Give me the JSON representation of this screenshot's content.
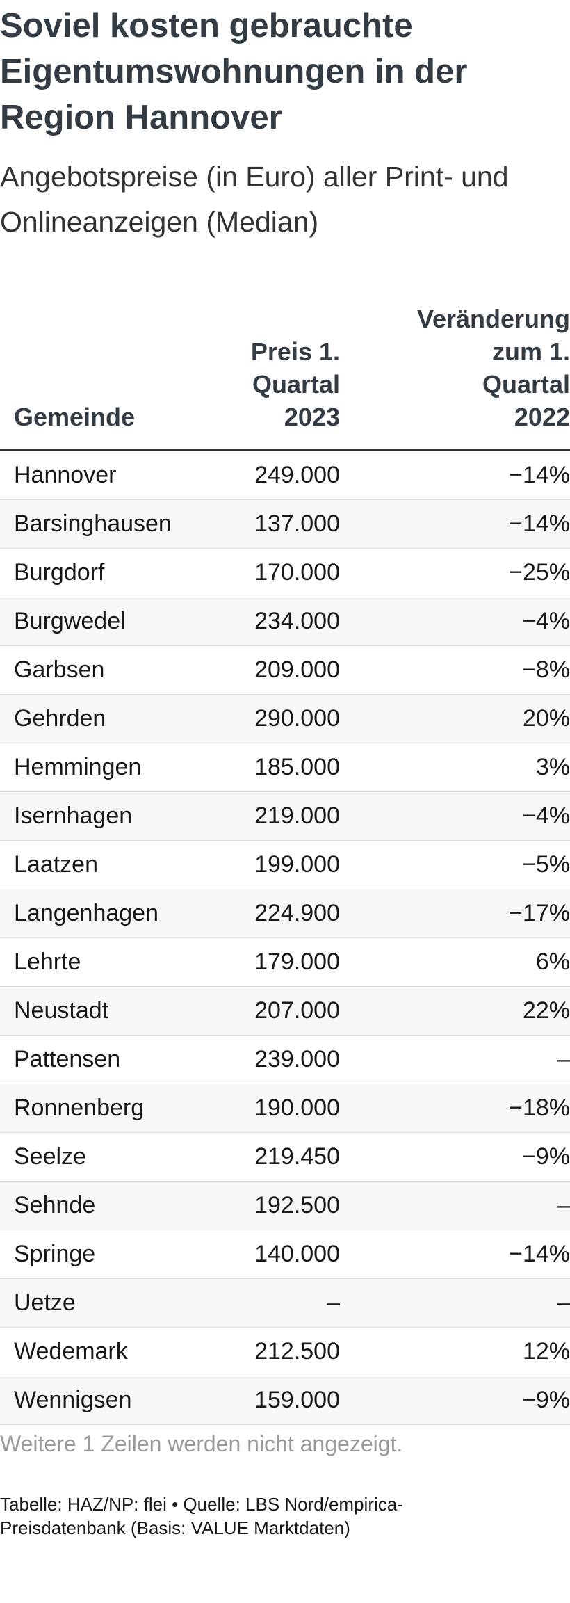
{
  "title": "Soviel kosten gebrauchte Eigentumswohnungen in der Region Hannover",
  "subtitle": "Angebotspreise (in Euro) aller Print- und Onlineanzeigen (Median)",
  "chart_data": {
    "type": "table",
    "columns": [
      "Gemeinde",
      "Preis 1. Quartal 2023",
      "Veränderung zum 1. Quartal 2022"
    ],
    "rows": [
      {
        "gemeinde": "Hannover",
        "preis": "249.000",
        "veraenderung": "−14%"
      },
      {
        "gemeinde": "Barsinghausen",
        "preis": "137.000",
        "veraenderung": "−14%"
      },
      {
        "gemeinde": "Burgdorf",
        "preis": "170.000",
        "veraenderung": "−25%"
      },
      {
        "gemeinde": "Burgwedel",
        "preis": "234.000",
        "veraenderung": "−4%"
      },
      {
        "gemeinde": "Garbsen",
        "preis": "209.000",
        "veraenderung": "−8%"
      },
      {
        "gemeinde": "Gehrden",
        "preis": "290.000",
        "veraenderung": "20%"
      },
      {
        "gemeinde": "Hemmingen",
        "preis": "185.000",
        "veraenderung": "3%"
      },
      {
        "gemeinde": "Isernhagen",
        "preis": "219.000",
        "veraenderung": "−4%"
      },
      {
        "gemeinde": "Laatzen",
        "preis": "199.000",
        "veraenderung": "−5%"
      },
      {
        "gemeinde": "Langenhagen",
        "preis": "224.900",
        "veraenderung": "−17%"
      },
      {
        "gemeinde": "Lehrte",
        "preis": "179.000",
        "veraenderung": "6%"
      },
      {
        "gemeinde": "Neustadt",
        "preis": "207.000",
        "veraenderung": "22%"
      },
      {
        "gemeinde": "Pattensen",
        "preis": "239.000",
        "veraenderung": "–"
      },
      {
        "gemeinde": "Ronnenberg",
        "preis": "190.000",
        "veraenderung": "−18%"
      },
      {
        "gemeinde": "Seelze",
        "preis": "219.450",
        "veraenderung": "−9%"
      },
      {
        "gemeinde": "Sehnde",
        "preis": "192.500",
        "veraenderung": "–"
      },
      {
        "gemeinde": "Springe",
        "preis": "140.000",
        "veraenderung": "−14%"
      },
      {
        "gemeinde": "Uetze",
        "preis": "–",
        "veraenderung": "–"
      },
      {
        "gemeinde": "Wedemark",
        "preis": "212.500",
        "veraenderung": "12%"
      },
      {
        "gemeinde": "Wennigsen",
        "preis": "159.000",
        "veraenderung": "−9%"
      }
    ]
  },
  "note": "Weitere 1 Zeilen werden nicht angezeigt.",
  "source": "Tabelle: HAZ/NP: flei • Quelle: LBS Nord/empirica-Preisdatenbank (Basis: VALUE Marktdaten)",
  "colors": {
    "title": "#333c45",
    "row_alt": "#f7f7f7",
    "divider": "#dddddd",
    "header_rule": "#333333",
    "note": "#9a9a9a"
  }
}
